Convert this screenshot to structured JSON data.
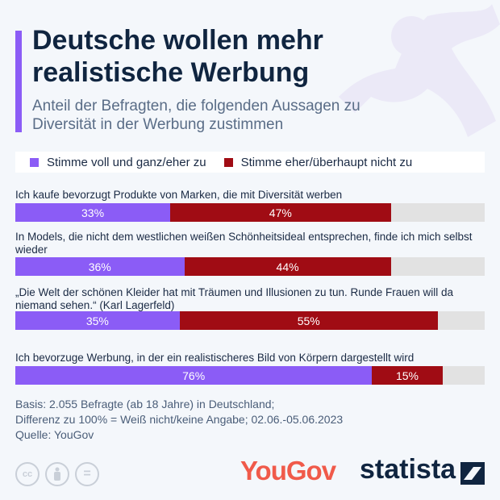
{
  "header": {
    "title": "Deutsche wollen mehr realistische Werbung",
    "subtitle": "Anteil der Befragten, die folgenden Aussagen zu Diversität in der Werbung zustimmen"
  },
  "chart_data": {
    "type": "bar",
    "stacked": true,
    "orientation": "horizontal",
    "xlim": [
      0,
      100
    ],
    "categories": [
      "Ich kaufe bevorzugt Produkte von Marken, die mit Diversität werben",
      "In Models, die nicht dem westlichen weißen Schönheitsideal entsprechen, finde ich mich selbst wieder",
      "„Die Welt der schönen Kleider hat mit Träumen und Illusionen zu tun. Runde Frauen will da niemand sehen.“ (Karl Lagerfeld)",
      "Ich bevorzuge Werbung, in der ein realistischeres Bild von Körpern dargestellt wird"
    ],
    "series": [
      {
        "name": "Stimme voll und ganz/eher zu",
        "color": "#8b5cf6",
        "values": [
          33,
          36,
          35,
          76
        ]
      },
      {
        "name": "Stimme eher/überhaupt nicht zu",
        "color": "#a00c14",
        "values": [
          47,
          44,
          55,
          15
        ]
      }
    ],
    "legend": "top"
  },
  "footer": {
    "basis": "Basis: 2.055 Befragte (ab 18 Jahre) in Deutschland;",
    "diff": "Differenz zu 100% = Weiß nicht/keine Angabe; 02.06.-05.06.2023",
    "source": "Quelle: YouGov",
    "license_icons": [
      "cc-icon",
      "by-icon",
      "nd-icon"
    ],
    "cc_text": "cc",
    "nd_text": "="
  },
  "logos": {
    "yougov": "YouGov",
    "statista": "statista"
  }
}
